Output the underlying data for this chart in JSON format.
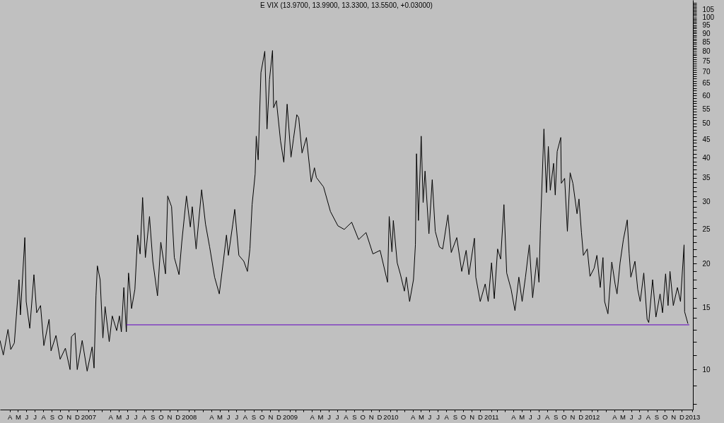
{
  "chart_data": {
    "type": "line",
    "title": "E VIX (13.9700, 13.9900, 13.3300, 13.5500, +0.03000)",
    "log": true,
    "xlim": [
      "2006-03-11",
      "2013-01-25"
    ],
    "xticks": [
      {
        "value": "2006-04-15",
        "label": "A"
      },
      {
        "value": "2006-05-15",
        "label": "M"
      },
      {
        "value": "2006-06-15",
        "label": "J"
      },
      {
        "value": "2006-07-15",
        "label": "J"
      },
      {
        "value": "2006-08-15",
        "label": "A"
      },
      {
        "value": "2006-09-15",
        "label": "S"
      },
      {
        "value": "2006-10-15",
        "label": "O"
      },
      {
        "value": "2006-11-15",
        "label": "N"
      },
      {
        "value": "2006-12-15",
        "label": "D"
      },
      {
        "value": "2007-01-25",
        "label": "2007"
      },
      {
        "value": "2007-02-15",
        "label": null
      },
      {
        "value": "2007-03-15",
        "label": null
      },
      {
        "value": "2007-04-15",
        "label": "A"
      },
      {
        "value": "2007-05-15",
        "label": "M"
      },
      {
        "value": "2007-06-15",
        "label": "J"
      },
      {
        "value": "2007-07-15",
        "label": "J"
      },
      {
        "value": "2007-08-15",
        "label": "A"
      },
      {
        "value": "2007-09-15",
        "label": "S"
      },
      {
        "value": "2007-10-15",
        "label": "O"
      },
      {
        "value": "2007-11-15",
        "label": "N"
      },
      {
        "value": "2007-12-15",
        "label": "D"
      },
      {
        "value": "2008-01-25",
        "label": "2008"
      },
      {
        "value": "2008-02-15",
        "label": null
      },
      {
        "value": "2008-03-15",
        "label": null
      },
      {
        "value": "2008-04-15",
        "label": "A"
      },
      {
        "value": "2008-05-15",
        "label": "M"
      },
      {
        "value": "2008-06-15",
        "label": "J"
      },
      {
        "value": "2008-07-15",
        "label": "J"
      },
      {
        "value": "2008-08-15",
        "label": "A"
      },
      {
        "value": "2008-09-15",
        "label": "S"
      },
      {
        "value": "2008-10-15",
        "label": "O"
      },
      {
        "value": "2008-11-15",
        "label": "N"
      },
      {
        "value": "2008-12-15",
        "label": "D"
      },
      {
        "value": "2009-01-25",
        "label": "2009"
      },
      {
        "value": "2009-02-15",
        "label": null
      },
      {
        "value": "2009-03-15",
        "label": null
      },
      {
        "value": "2009-04-15",
        "label": "A"
      },
      {
        "value": "2009-05-15",
        "label": "M"
      },
      {
        "value": "2009-06-15",
        "label": "J"
      },
      {
        "value": "2009-07-15",
        "label": "J"
      },
      {
        "value": "2009-08-15",
        "label": "A"
      },
      {
        "value": "2009-09-15",
        "label": "S"
      },
      {
        "value": "2009-10-15",
        "label": "O"
      },
      {
        "value": "2009-11-15",
        "label": "N"
      },
      {
        "value": "2009-12-15",
        "label": "D"
      },
      {
        "value": "2010-01-25",
        "label": "2010"
      },
      {
        "value": "2010-02-15",
        "label": null
      },
      {
        "value": "2010-03-15",
        "label": null
      },
      {
        "value": "2010-04-15",
        "label": "A"
      },
      {
        "value": "2010-05-15",
        "label": "M"
      },
      {
        "value": "2010-06-15",
        "label": "J"
      },
      {
        "value": "2010-07-15",
        "label": "J"
      },
      {
        "value": "2010-08-15",
        "label": "A"
      },
      {
        "value": "2010-09-15",
        "label": "S"
      },
      {
        "value": "2010-10-15",
        "label": "O"
      },
      {
        "value": "2010-11-15",
        "label": "N"
      },
      {
        "value": "2010-12-15",
        "label": "D"
      },
      {
        "value": "2011-01-25",
        "label": "2011"
      },
      {
        "value": "2011-02-15",
        "label": null
      },
      {
        "value": "2011-03-15",
        "label": null
      },
      {
        "value": "2011-04-15",
        "label": "A"
      },
      {
        "value": "2011-05-15",
        "label": "M"
      },
      {
        "value": "2011-06-15",
        "label": "J"
      },
      {
        "value": "2011-07-15",
        "label": "J"
      },
      {
        "value": "2011-08-15",
        "label": "A"
      },
      {
        "value": "2011-09-15",
        "label": "S"
      },
      {
        "value": "2011-10-15",
        "label": "O"
      },
      {
        "value": "2011-11-15",
        "label": "N"
      },
      {
        "value": "2011-12-15",
        "label": "D"
      },
      {
        "value": "2012-01-25",
        "label": "2012"
      },
      {
        "value": "2012-02-15",
        "label": null
      },
      {
        "value": "2012-03-15",
        "label": null
      },
      {
        "value": "2012-04-15",
        "label": "A"
      },
      {
        "value": "2012-05-15",
        "label": "M"
      },
      {
        "value": "2012-06-15",
        "label": "J"
      },
      {
        "value": "2012-07-15",
        "label": "J"
      },
      {
        "value": "2012-08-15",
        "label": "A"
      },
      {
        "value": "2012-09-15",
        "label": "S"
      },
      {
        "value": "2012-10-15",
        "label": "O"
      },
      {
        "value": "2012-11-15",
        "label": "N"
      },
      {
        "value": "2012-12-15",
        "label": "D"
      },
      {
        "value": "2013-01-23",
        "label": "2013"
      }
    ],
    "ylim": [
      7.7,
      112
    ],
    "yticks": [
      {
        "value": 8,
        "label": null
      },
      {
        "value": 9,
        "label": null
      },
      10,
      {
        "value": 11,
        "label": null
      },
      {
        "value": 12,
        "label": null
      },
      {
        "value": 13,
        "label": null
      },
      {
        "value": 14,
        "label": null
      },
      15,
      {
        "value": 16,
        "label": null
      },
      {
        "value": 17,
        "label": null
      },
      {
        "value": 18,
        "label": null
      },
      {
        "value": 19,
        "label": null
      },
      20,
      {
        "value": 21,
        "label": null
      },
      {
        "value": 22,
        "label": null
      },
      {
        "value": 23,
        "label": null
      },
      {
        "value": 24,
        "label": null
      },
      25,
      {
        "value": 26,
        "label": null
      },
      {
        "value": 27,
        "label": null
      },
      {
        "value": 28,
        "label": null
      },
      {
        "value": 29,
        "label": null
      },
      30,
      {
        "value": 31,
        "label": null
      },
      {
        "value": 32,
        "label": null
      },
      {
        "value": 33,
        "label": null
      },
      {
        "value": 34,
        "label": null
      },
      35,
      {
        "value": 36,
        "label": null
      },
      {
        "value": 37,
        "label": null
      },
      {
        "value": 38,
        "label": null
      },
      {
        "value": 39,
        "label": null
      },
      40,
      {
        "value": 41,
        "label": null
      },
      {
        "value": 42,
        "label": null
      },
      {
        "value": 43,
        "label": null
      },
      {
        "value": 44,
        "label": null
      },
      45,
      {
        "value": 46,
        "label": null
      },
      {
        "value": 47,
        "label": null
      },
      {
        "value": 48,
        "label": null
      },
      {
        "value": 49,
        "label": null
      },
      50,
      {
        "value": 51,
        "label": null
      },
      {
        "value": 52,
        "label": null
      },
      {
        "value": 53,
        "label": null
      },
      {
        "value": 54,
        "label": null
      },
      55,
      {
        "value": 56,
        "label": null
      },
      {
        "value": 57,
        "label": null
      },
      {
        "value": 58,
        "label": null
      },
      {
        "value": 59,
        "label": null
      },
      60,
      {
        "value": 61,
        "label": null
      },
      {
        "value": 62,
        "label": null
      },
      {
        "value": 63,
        "label": null
      },
      {
        "value": 64,
        "label": null
      },
      65,
      {
        "value": 66,
        "label": null
      },
      {
        "value": 67,
        "label": null
      },
      {
        "value": 68,
        "label": null
      },
      {
        "value": 69,
        "label": null
      },
      70,
      {
        "value": 71,
        "label": null
      },
      {
        "value": 72,
        "label": null
      },
      {
        "value": 73,
        "label": null
      },
      {
        "value": 74,
        "label": null
      },
      75,
      {
        "value": 76,
        "label": null
      },
      {
        "value": 77,
        "label": null
      },
      {
        "value": 78,
        "label": null
      },
      {
        "value": 79,
        "label": null
      },
      80,
      {
        "value": 81,
        "label": null
      },
      {
        "value": 82,
        "label": null
      },
      {
        "value": 83,
        "label": null
      },
      {
        "value": 84,
        "label": null
      },
      85,
      {
        "value": 86,
        "label": null
      },
      {
        "value": 87,
        "label": null
      },
      {
        "value": 88,
        "label": null
      },
      {
        "value": 89,
        "label": null
      },
      90,
      {
        "value": 91,
        "label": null
      },
      {
        "value": 92,
        "label": null
      },
      {
        "value": 93,
        "label": null
      },
      {
        "value": 94,
        "label": null
      },
      95,
      {
        "value": 96,
        "label": null
      },
      {
        "value": 97,
        "label": null
      },
      {
        "value": 98,
        "label": null
      },
      {
        "value": 99,
        "label": null
      },
      100,
      {
        "value": 101,
        "label": null
      },
      {
        "value": 102,
        "label": null
      },
      {
        "value": 103,
        "label": null
      },
      {
        "value": 104,
        "label": null
      },
      105,
      {
        "value": 106,
        "label": null
      },
      {
        "value": 107,
        "label": null
      },
      {
        "value": 108,
        "label": null
      },
      {
        "value": 109,
        "label": null
      },
      {
        "value": 110,
        "label": null
      }
    ],
    "series": [
      {
        "color": "#000000",
        "x": [
          "2006-03-11",
          "2006-03-23",
          "2006-04-09",
          "2006-04-19",
          "2006-05-02",
          "2006-05-09",
          "2006-05-19",
          "2006-05-24",
          "2006-06-09",
          "2006-06-14",
          "2006-06-27",
          "2006-07-12",
          "2006-07-22",
          "2006-08-05",
          "2006-08-17",
          "2006-09-05",
          "2006-09-12",
          "2006-09-30",
          "2006-10-15",
          "2006-11-03",
          "2006-11-20",
          "2006-11-25",
          "2006-12-08",
          "2006-12-16",
          "2007-01-03",
          "2007-01-21",
          "2007-02-08",
          "2007-02-15",
          "2007-02-22",
          "2007-02-27",
          "2007-03-09",
          "2007-03-19",
          "2007-03-27",
          "2007-04-11",
          "2007-04-22",
          "2007-05-08",
          "2007-05-18",
          "2007-05-25",
          "2007-06-03",
          "2007-06-12",
          "2007-06-20",
          "2007-07-01",
          "2007-07-13",
          "2007-07-23",
          "2007-08-01",
          "2007-08-10",
          "2007-08-20",
          "2007-09-04",
          "2007-09-16",
          "2007-10-03",
          "2007-10-15",
          "2007-11-01",
          "2007-11-09",
          "2007-11-23",
          "2007-12-03",
          "2007-12-20",
          "2007-12-30",
          "2008-01-16",
          "2008-01-30",
          "2008-02-06",
          "2008-02-20",
          "2008-03-11",
          "2008-03-25",
          "2008-04-09",
          "2008-04-27",
          "2008-05-14",
          "2008-05-28",
          "2008-06-09",
          "2008-06-16",
          "2008-07-02",
          "2008-07-09",
          "2008-07-24",
          "2008-08-11",
          "2008-08-24",
          "2008-09-02",
          "2008-09-10",
          "2008-09-21",
          "2008-09-25",
          "2008-10-02",
          "2008-10-12",
          "2008-10-26",
          "2008-11-03",
          "2008-11-12",
          "2008-11-23",
          "2008-11-27",
          "2008-12-07",
          "2008-12-22",
          "2009-01-03",
          "2009-01-15",
          "2009-01-29",
          "2009-02-07",
          "2009-02-19",
          "2009-02-26",
          "2009-03-10",
          "2009-03-26",
          "2009-04-12",
          "2009-04-24",
          "2009-05-01",
          "2009-05-27",
          "2009-06-21",
          "2009-07-18",
          "2009-08-10",
          "2009-09-06",
          "2009-10-01",
          "2009-10-28",
          "2009-11-22",
          "2009-12-18",
          "2010-01-14",
          "2010-01-20",
          "2010-01-30",
          "2010-02-04",
          "2010-02-18",
          "2010-03-02",
          "2010-03-16",
          "2010-03-23",
          "2010-04-04",
          "2010-04-18",
          "2010-04-25",
          "2010-04-29",
          "2010-05-06",
          "2010-05-16",
          "2010-05-23",
          "2010-05-30",
          "2010-06-13",
          "2010-06-25",
          "2010-07-06",
          "2010-07-21",
          "2010-08-02",
          "2010-08-21",
          "2010-09-02",
          "2010-09-22",
          "2010-10-10",
          "2010-10-26",
          "2010-11-05",
          "2010-11-25",
          "2010-11-30",
          "2010-12-16",
          "2011-01-03",
          "2011-01-14",
          "2011-01-26",
          "2011-02-05",
          "2011-02-17",
          "2011-02-28",
          "2011-03-12",
          "2011-03-22",
          "2011-04-07",
          "2011-04-21",
          "2011-05-05",
          "2011-05-17",
          "2011-05-29",
          "2011-06-12",
          "2011-06-24",
          "2011-07-10",
          "2011-07-17",
          "2011-07-22",
          "2011-08-04",
          "2011-08-13",
          "2011-08-20",
          "2011-08-27",
          "2011-09-08",
          "2011-09-14",
          "2011-09-21",
          "2011-10-04",
          "2011-10-06",
          "2011-10-18",
          "2011-10-28",
          "2011-11-07",
          "2011-11-17",
          "2011-12-02",
          "2011-12-09",
          "2011-12-18",
          "2011-12-25",
          "2012-01-08",
          "2012-01-18",
          "2012-02-02",
          "2012-02-12",
          "2012-02-24",
          "2012-03-05",
          "2012-03-11",
          "2012-03-23",
          "2012-04-06",
          "2012-04-18",
          "2012-04-25",
          "2012-05-06",
          "2012-05-18",
          "2012-06-01",
          "2012-06-08",
          "2012-06-14",
          "2012-06-29",
          "2012-07-09",
          "2012-07-18",
          "2012-07-31",
          "2012-08-12",
          "2012-08-18",
          "2012-09-01",
          "2012-09-13",
          "2012-09-28",
          "2012-10-07",
          "2012-10-18",
          "2012-10-27",
          "2012-11-03",
          "2012-11-15",
          "2012-11-30",
          "2012-12-11",
          "2012-12-24",
          "2012-12-26",
          "2013-01-07"
        ],
        "values": [
          12.1,
          11.0,
          13.0,
          11.4,
          11.9,
          14.1,
          18.0,
          14.3,
          23.7,
          15.6,
          13.1,
          18.6,
          14.5,
          15.2,
          11.7,
          13.9,
          11.3,
          12.5,
          10.7,
          11.5,
          10.0,
          12.4,
          12.7,
          10.0,
          12.1,
          9.9,
          11.6,
          10.1,
          16.2,
          19.7,
          18.0,
          12.3,
          15.1,
          12.0,
          14.2,
          12.9,
          14.2,
          12.8,
          17.1,
          12.8,
          18.8,
          14.9,
          16.9,
          24.1,
          21.3,
          30.8,
          20.8,
          27.2,
          20.3,
          16.2,
          23.0,
          18.7,
          31.1,
          29.0,
          20.8,
          18.6,
          23.0,
          31.1,
          25.4,
          29.0,
          22.0,
          32.4,
          25.9,
          22.3,
          18.3,
          16.4,
          20.1,
          24.1,
          21.1,
          25.9,
          28.5,
          21.1,
          20.3,
          19.0,
          22.0,
          29.4,
          35.9,
          46.0,
          39.4,
          69.7,
          80.1,
          48.2,
          66.6,
          80.5,
          55.4,
          58.0,
          44.6,
          38.8,
          56.7,
          40.1,
          45.2,
          52.9,
          51.9,
          41.2,
          45.6,
          34.1,
          37.4,
          35.1,
          33.0,
          28.1,
          25.6,
          25.0,
          26.2,
          23.4,
          24.5,
          21.3,
          21.8,
          17.7,
          27.2,
          21.6,
          26.5,
          20.1,
          18.6,
          16.7,
          18.3,
          15.6,
          18.0,
          22.6,
          41.0,
          26.5,
          46.0,
          29.8,
          36.6,
          24.3,
          34.6,
          24.7,
          22.3,
          22.0,
          27.5,
          21.5,
          23.7,
          19.0,
          21.8,
          18.6,
          23.6,
          18.3,
          15.6,
          17.5,
          15.6,
          20.1,
          15.9,
          22.0,
          20.6,
          29.4,
          18.8,
          16.9,
          14.7,
          18.3,
          15.6,
          18.3,
          22.6,
          16.0,
          20.8,
          17.7,
          24.8,
          48.2,
          31.8,
          43.0,
          32.3,
          38.5,
          31.3,
          41.6,
          45.6,
          33.8,
          34.9,
          24.7,
          36.2,
          33.8,
          27.7,
          30.5,
          24.5,
          21.1,
          22.0,
          18.4,
          19.4,
          21.1,
          17.1,
          20.8,
          15.6,
          14.4,
          20.2,
          17.5,
          16.4,
          20.1,
          23.4,
          26.6,
          21.3,
          18.3,
          20.3,
          16.9,
          15.6,
          18.8,
          13.9,
          13.6,
          18.0,
          14.1,
          16.4,
          14.5,
          18.7,
          15.2,
          19.0,
          15.2,
          17.1,
          15.6,
          22.6,
          14.6,
          13.5
        ]
      },
      {
        "color": "#6000c0",
        "x": [
          "2007-06-12",
          "2013-01-12"
        ],
        "values": [
          13.4,
          13.4
        ]
      }
    ]
  }
}
